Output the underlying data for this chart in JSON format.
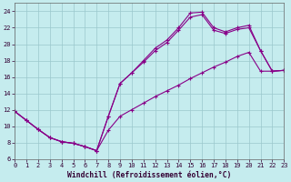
{
  "xlabel": "Windchill (Refroidissement éolien,°C)",
  "bg_color": "#c5ecee",
  "grid_color": "#9ac8cc",
  "line_color": "#880088",
  "xlim": [
    0,
    23
  ],
  "ylim": [
    6,
    25
  ],
  "xticks": [
    0,
    1,
    2,
    3,
    4,
    5,
    6,
    7,
    8,
    9,
    10,
    11,
    12,
    13,
    14,
    15,
    16,
    17,
    18,
    19,
    20,
    21,
    22,
    23
  ],
  "yticks": [
    6,
    8,
    10,
    12,
    14,
    16,
    18,
    20,
    22,
    24
  ],
  "curve1_x": [
    0,
    1,
    2,
    3,
    4,
    5,
    6,
    7,
    8,
    9,
    10,
    11,
    12,
    13,
    14,
    15,
    16,
    17,
    18,
    19,
    20,
    21,
    22,
    23
  ],
  "curve1_y": [
    11.8,
    10.7,
    9.6,
    8.6,
    8.1,
    7.9,
    7.5,
    7.0,
    11.2,
    15.2,
    16.5,
    18.0,
    19.5,
    20.5,
    22.0,
    23.8,
    23.9,
    22.0,
    21.5,
    22.0,
    22.3,
    19.2,
    16.7,
    16.8
  ],
  "curve2_x": [
    0,
    1,
    2,
    3,
    4,
    5,
    6,
    7,
    8,
    9,
    10,
    11,
    12,
    13,
    14,
    15,
    16,
    17,
    18,
    19,
    20,
    21,
    22,
    23
  ],
  "curve2_y": [
    11.8,
    10.7,
    9.6,
    8.6,
    8.1,
    7.9,
    7.5,
    7.0,
    11.2,
    15.2,
    16.5,
    17.8,
    19.2,
    20.2,
    21.7,
    23.3,
    23.6,
    21.7,
    21.3,
    21.8,
    22.0,
    19.2,
    16.7,
    16.8
  ],
  "curve3_x": [
    0,
    1,
    2,
    3,
    4,
    5,
    6,
    7,
    8,
    9,
    10,
    11,
    12,
    13,
    14,
    15,
    16,
    17,
    18,
    19,
    20,
    21,
    22,
    23
  ],
  "curve3_y": [
    11.8,
    10.7,
    9.6,
    8.6,
    8.1,
    7.9,
    7.5,
    7.0,
    9.5,
    11.2,
    12.0,
    12.8,
    13.6,
    14.3,
    15.0,
    15.8,
    16.5,
    17.2,
    17.8,
    18.5,
    19.0,
    16.7,
    16.7,
    16.8
  ],
  "xlabel_fontsize": 5.8,
  "tick_fontsize": 5.0,
  "linewidth": 0.8,
  "markersize": 3.0
}
